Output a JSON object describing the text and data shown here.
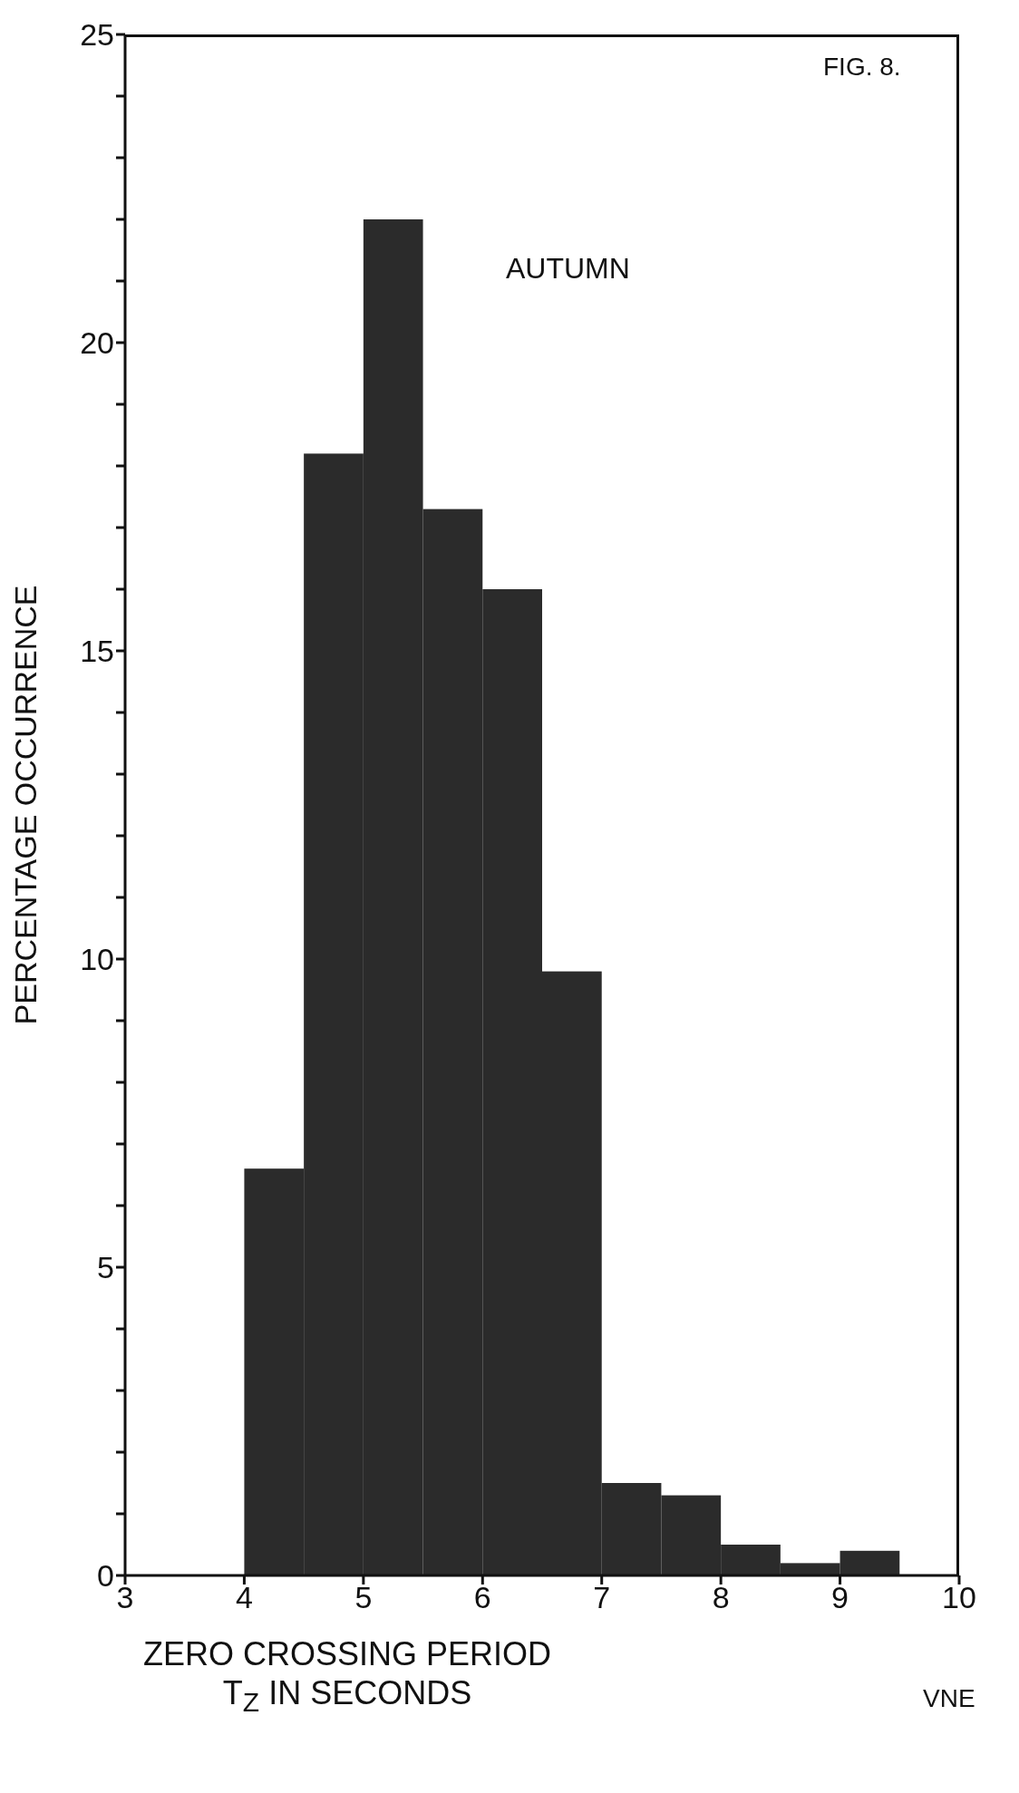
{
  "chart_data": {
    "type": "histogram",
    "xlabel": "ZERO CROSSING PERIOD T$_{Z}$ IN SECONDS",
    "ylabel": "PERCENTAGE OCCURRENCE",
    "annotations": [
      "FIG. 8.",
      "AUTUMN",
      "VNE"
    ],
    "bins": [
      4,
      4.5,
      5,
      5.5,
      6,
      6.5,
      7,
      7.5,
      8,
      8.5,
      9,
      9.5
    ],
    "values": [
      6.6,
      18.2,
      22.0,
      17.3,
      16.0,
      9.8,
      1.5,
      1.3,
      0.5,
      0.2,
      0.4
    ],
    "color": "#2b2b2b",
    "xlim": [
      3,
      10
    ],
    "xticks": [
      3,
      4,
      5,
      6,
      7,
      8,
      9,
      10
    ],
    "ylim": [
      0,
      25
    ],
    "yticks": [
      0,
      {
        "value": 1,
        "label": null
      },
      {
        "value": 2,
        "label": null
      },
      {
        "value": 3,
        "label": null
      },
      {
        "value": 4,
        "label": null
      },
      5,
      {
        "value": 6,
        "label": null
      },
      {
        "value": 7,
        "label": null
      },
      {
        "value": 8,
        "label": null
      },
      {
        "value": 9,
        "label": null
      },
      10,
      {
        "value": 11,
        "label": null
      },
      {
        "value": 12,
        "label": null
      },
      {
        "value": 13,
        "label": null
      },
      {
        "value": 14,
        "label": null
      },
      15,
      {
        "value": 16,
        "label": null
      },
      {
        "value": 17,
        "label": null
      },
      {
        "value": 18,
        "label": null
      },
      {
        "value": 19,
        "label": null
      },
      20,
      {
        "value": 21,
        "label": null
      },
      {
        "value": 22,
        "label": null
      },
      {
        "value": 23,
        "label": null
      },
      {
        "value": 24,
        "label": null
      },
      25
    ],
    "grid": false,
    "legend": false
  }
}
